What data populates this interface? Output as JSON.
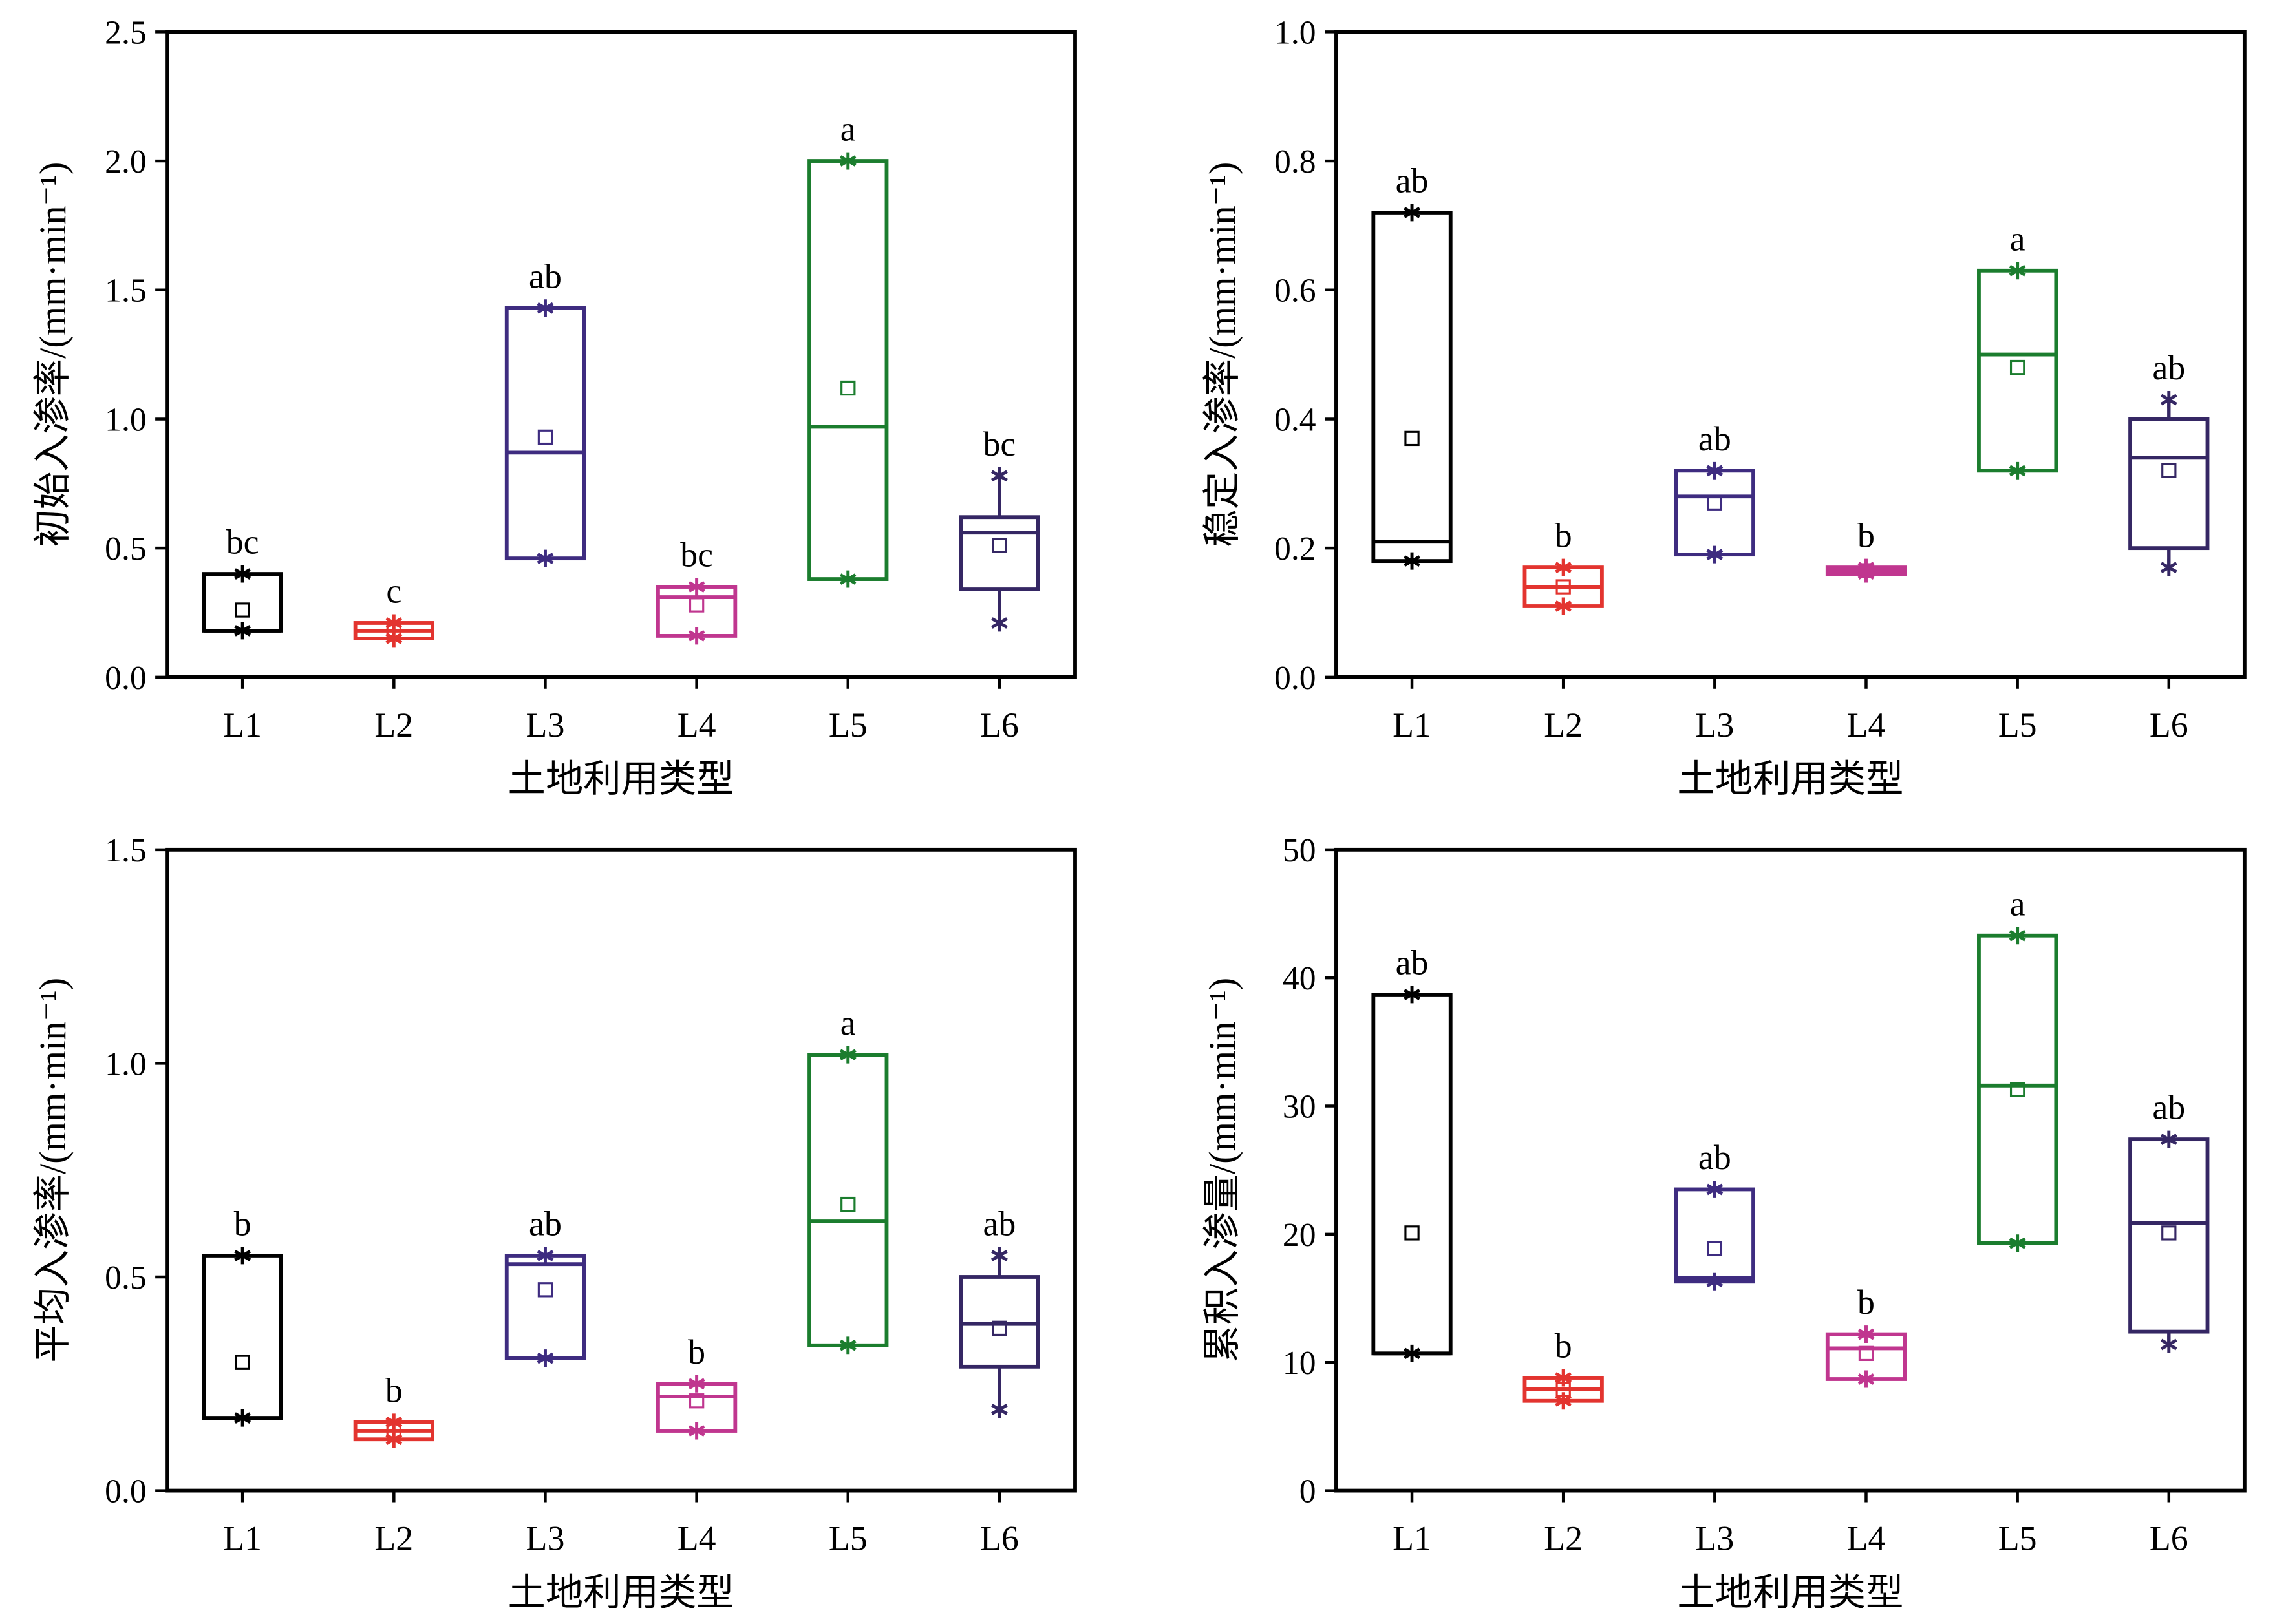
{
  "chart_data": [
    {
      "type": "box",
      "ylabel": "初始入渗率/(mm·min⁻¹)",
      "xlabel": "土地利用类型",
      "ylim": [
        0,
        2.5
      ],
      "yticks": [
        "0.0",
        "0.5",
        "1.0",
        "1.5",
        "2.0",
        "2.5"
      ],
      "categories": [
        "L1",
        "L2",
        "L3",
        "L4",
        "L5",
        "L6"
      ],
      "colors": [
        "#000000",
        "#e3342f",
        "#3e2c80",
        "#c0368f",
        "#1b7d2e",
        "#352764"
      ],
      "boxes": [
        {
          "min": 0.18,
          "q1": 0.18,
          "median": 0.18,
          "q3": 0.4,
          "max": 0.4,
          "mean": 0.26,
          "letter": "bc"
        },
        {
          "min": 0.15,
          "q1": 0.15,
          "median": 0.18,
          "q3": 0.21,
          "max": 0.21,
          "mean": 0.18,
          "letter": "c"
        },
        {
          "min": 0.46,
          "q1": 0.46,
          "median": 0.87,
          "q3": 1.43,
          "max": 1.43,
          "mean": 0.93,
          "letter": "ab"
        },
        {
          "min": 0.16,
          "q1": 0.16,
          "median": 0.31,
          "q3": 0.35,
          "max": 0.35,
          "mean": 0.28,
          "letter": "bc"
        },
        {
          "min": 0.38,
          "q1": 0.38,
          "median": 0.97,
          "q3": 2.0,
          "max": 2.0,
          "mean": 1.12,
          "letter": "a"
        },
        {
          "min": 0.21,
          "q1": 0.34,
          "median": 0.56,
          "q3": 0.62,
          "max": 0.78,
          "mean": 0.51,
          "letter": "bc"
        }
      ]
    },
    {
      "type": "box",
      "ylabel": "稳定入渗率/(mm·min⁻¹)",
      "xlabel": "土地利用类型",
      "ylim": [
        0,
        1.0
      ],
      "yticks": [
        "0.0",
        "0.2",
        "0.4",
        "0.6",
        "0.8",
        "1.0"
      ],
      "categories": [
        "L1",
        "L2",
        "L3",
        "L4",
        "L5",
        "L6"
      ],
      "colors": [
        "#000000",
        "#e3342f",
        "#3e2c80",
        "#c0368f",
        "#1b7d2e",
        "#352764"
      ],
      "boxes": [
        {
          "min": 0.18,
          "q1": 0.18,
          "median": 0.21,
          "q3": 0.72,
          "max": 0.72,
          "mean": 0.37,
          "letter": "ab"
        },
        {
          "min": 0.11,
          "q1": 0.11,
          "median": 0.14,
          "q3": 0.17,
          "max": 0.17,
          "mean": 0.14,
          "letter": "b"
        },
        {
          "min": 0.19,
          "q1": 0.19,
          "median": 0.28,
          "q3": 0.32,
          "max": 0.32,
          "mean": 0.27,
          "letter": "ab"
        },
        {
          "min": 0.16,
          "q1": 0.16,
          "median": 0.165,
          "q3": 0.17,
          "max": 0.17,
          "mean": 0.165,
          "letter": "b"
        },
        {
          "min": 0.32,
          "q1": 0.32,
          "median": 0.5,
          "q3": 0.63,
          "max": 0.63,
          "mean": 0.48,
          "letter": "a"
        },
        {
          "min": 0.17,
          "q1": 0.2,
          "median": 0.34,
          "q3": 0.4,
          "max": 0.43,
          "mean": 0.32,
          "letter": "ab"
        }
      ]
    },
    {
      "type": "box",
      "ylabel": "平均入渗率/(mm·min⁻¹)",
      "xlabel": "土地利用类型",
      "ylim": [
        0,
        1.5
      ],
      "yticks": [
        "0.0",
        "0.5",
        "1.0",
        "1.5"
      ],
      "categories": [
        "L1",
        "L2",
        "L3",
        "L4",
        "L5",
        "L6"
      ],
      "colors": [
        "#000000",
        "#e3342f",
        "#3e2c80",
        "#c0368f",
        "#1b7d2e",
        "#352764"
      ],
      "boxes": [
        {
          "min": 0.17,
          "q1": 0.17,
          "median": 0.17,
          "q3": 0.55,
          "max": 0.55,
          "mean": 0.3,
          "letter": "b"
        },
        {
          "min": 0.12,
          "q1": 0.12,
          "median": 0.14,
          "q3": 0.16,
          "max": 0.16,
          "mean": 0.14,
          "letter": "b"
        },
        {
          "min": 0.31,
          "q1": 0.31,
          "median": 0.53,
          "q3": 0.55,
          "max": 0.55,
          "mean": 0.47,
          "letter": "ab"
        },
        {
          "min": 0.14,
          "q1": 0.14,
          "median": 0.22,
          "q3": 0.25,
          "max": 0.25,
          "mean": 0.21,
          "letter": "b"
        },
        {
          "min": 0.34,
          "q1": 0.34,
          "median": 0.63,
          "q3": 1.02,
          "max": 1.02,
          "mean": 0.67,
          "letter": "a"
        },
        {
          "min": 0.19,
          "q1": 0.29,
          "median": 0.39,
          "q3": 0.5,
          "max": 0.55,
          "mean": 0.38,
          "letter": "ab"
        }
      ]
    },
    {
      "type": "box",
      "ylabel": "累积入渗量/(mm·min⁻¹)",
      "xlabel": "土地利用类型",
      "ylim": [
        0,
        50
      ],
      "yticks": [
        "0",
        "10",
        "20",
        "30",
        "40",
        "50"
      ],
      "categories": [
        "L1",
        "L2",
        "L3",
        "L4",
        "L5",
        "L6"
      ],
      "colors": [
        "#000000",
        "#e3342f",
        "#3e2c80",
        "#c0368f",
        "#1b7d2e",
        "#352764"
      ],
      "boxes": [
        {
          "min": 10.7,
          "q1": 10.7,
          "median": 10.7,
          "q3": 38.7,
          "max": 38.7,
          "mean": 20.1,
          "letter": "ab"
        },
        {
          "min": 7.0,
          "q1": 7.0,
          "median": 7.9,
          "q3": 8.8,
          "max": 8.8,
          "mean": 7.9,
          "letter": "b"
        },
        {
          "min": 16.3,
          "q1": 16.3,
          "median": 16.6,
          "q3": 23.5,
          "max": 23.5,
          "mean": 18.9,
          "letter": "ab"
        },
        {
          "min": 8.7,
          "q1": 8.7,
          "median": 11.1,
          "q3": 12.2,
          "max": 12.2,
          "mean": 10.7,
          "letter": "b"
        },
        {
          "min": 19.3,
          "q1": 19.3,
          "median": 31.6,
          "q3": 43.3,
          "max": 43.3,
          "mean": 31.3,
          "letter": "a"
        },
        {
          "min": 11.4,
          "q1": 12.4,
          "median": 20.9,
          "q3": 27.4,
          "max": 27.4,
          "mean": 20.1,
          "letter": "ab"
        }
      ]
    }
  ]
}
